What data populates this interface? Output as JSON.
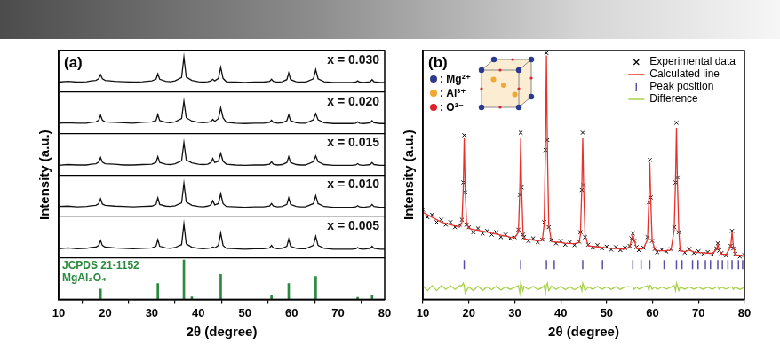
{
  "chart_data": [
    {
      "type": "line",
      "title": "(a)",
      "xlabel": "2θ (degree)",
      "ylabel": "Intensity (a.u.)",
      "xlim": [
        10,
        80
      ],
      "xticks": [
        10,
        20,
        30,
        40,
        50,
        60,
        70,
        80
      ],
      "ylim": [
        0,
        6
      ],
      "yticks": [
        0,
        1,
        2,
        3,
        4,
        5,
        6
      ],
      "grid": "y",
      "tick_labels": "x",
      "x": [
        10,
        12,
        14,
        16,
        17,
        18,
        18.6,
        19.0,
        19.4,
        20,
        22,
        24,
        26,
        28,
        30,
        30.9,
        31.3,
        31.7,
        33,
        34,
        35,
        36.4,
        36.9,
        37.4,
        38.6,
        40,
        41,
        42,
        42.7,
        43.1,
        43.5,
        44.3,
        44.8,
        45.3,
        46,
        48,
        50,
        52,
        54,
        55.3,
        55.7,
        56.1,
        57,
        58,
        59.0,
        59.4,
        59.8,
        61,
        62,
        63,
        64.7,
        65.2,
        65.7,
        67,
        69,
        71,
        73,
        73.8,
        74.2,
        74.6,
        75.5,
        76.9,
        77.3,
        77.7,
        79,
        80
      ],
      "series": [
        {
          "name": "x = 0.030",
          "type": "line",
          "color": "#111111",
          "values": [
            5.24,
            5.26,
            5.24,
            5.25,
            5.27,
            5.28,
            5.32,
            5.42,
            5.32,
            5.28,
            5.26,
            5.25,
            5.24,
            5.25,
            5.27,
            5.31,
            5.44,
            5.31,
            5.26,
            5.25,
            5.27,
            5.35,
            5.84,
            5.36,
            5.28,
            5.25,
            5.24,
            5.25,
            5.27,
            5.31,
            5.27,
            5.33,
            5.6,
            5.33,
            5.25,
            5.24,
            5.23,
            5.24,
            5.24,
            5.26,
            5.31,
            5.26,
            5.24,
            5.25,
            5.3,
            5.46,
            5.3,
            5.25,
            5.24,
            5.24,
            5.32,
            5.54,
            5.32,
            5.25,
            5.23,
            5.23,
            5.23,
            5.24,
            5.27,
            5.24,
            5.23,
            5.25,
            5.3,
            5.25,
            5.23,
            5.23
          ]
        },
        {
          "name": "x = 0.020",
          "type": "line",
          "color": "#111111",
          "values": [
            4.25,
            4.26,
            4.25,
            4.25,
            4.27,
            4.28,
            4.32,
            4.44,
            4.32,
            4.28,
            4.27,
            4.26,
            4.25,
            4.27,
            4.28,
            4.31,
            4.46,
            4.31,
            4.27,
            4.26,
            4.28,
            4.36,
            4.78,
            4.38,
            4.3,
            4.27,
            4.26,
            4.27,
            4.29,
            4.34,
            4.29,
            4.36,
            4.62,
            4.38,
            4.27,
            4.25,
            4.24,
            4.25,
            4.25,
            4.27,
            4.32,
            4.27,
            4.25,
            4.26,
            4.31,
            4.45,
            4.31,
            4.26,
            4.25,
            4.25,
            4.33,
            4.48,
            4.33,
            4.26,
            4.24,
            4.24,
            4.24,
            4.25,
            4.28,
            4.25,
            4.24,
            4.26,
            4.31,
            4.26,
            4.24,
            4.24
          ]
        },
        {
          "name": "x = 0.015",
          "type": "line",
          "color": "#111111",
          "values": [
            3.23,
            3.25,
            3.24,
            3.24,
            3.26,
            3.27,
            3.31,
            3.42,
            3.31,
            3.27,
            3.26,
            3.24,
            3.24,
            3.25,
            3.26,
            3.3,
            3.44,
            3.3,
            3.26,
            3.25,
            3.27,
            3.34,
            3.78,
            3.36,
            3.29,
            3.26,
            3.25,
            3.26,
            3.3,
            3.4,
            3.3,
            3.33,
            3.52,
            3.33,
            3.26,
            3.24,
            3.23,
            3.24,
            3.24,
            3.26,
            3.32,
            3.26,
            3.24,
            3.25,
            3.3,
            3.44,
            3.3,
            3.25,
            3.24,
            3.24,
            3.32,
            3.46,
            3.32,
            3.25,
            3.23,
            3.23,
            3.23,
            3.24,
            3.27,
            3.24,
            3.23,
            3.25,
            3.3,
            3.25,
            3.23,
            3.23
          ]
        },
        {
          "name": "x = 0.010",
          "type": "line",
          "color": "#111111",
          "values": [
            2.24,
            2.25,
            2.23,
            2.24,
            2.26,
            2.27,
            2.31,
            2.43,
            2.3,
            2.27,
            2.25,
            2.24,
            2.23,
            2.24,
            2.25,
            2.29,
            2.45,
            2.29,
            2.25,
            2.24,
            2.26,
            2.33,
            2.8,
            2.35,
            2.27,
            2.24,
            2.23,
            2.25,
            2.28,
            2.38,
            2.28,
            2.31,
            2.55,
            2.31,
            2.24,
            2.23,
            2.22,
            2.23,
            2.23,
            2.25,
            2.31,
            2.25,
            2.23,
            2.24,
            2.29,
            2.45,
            2.29,
            2.24,
            2.23,
            2.23,
            2.31,
            2.5,
            2.31,
            2.24,
            2.22,
            2.22,
            2.22,
            2.23,
            2.26,
            2.23,
            2.22,
            2.24,
            2.29,
            2.24,
            2.22,
            2.22
          ]
        },
        {
          "name": "x = 0.005",
          "type": "line",
          "color": "#111111",
          "values": [
            1.22,
            1.24,
            1.22,
            1.23,
            1.25,
            1.26,
            1.3,
            1.42,
            1.3,
            1.26,
            1.24,
            1.23,
            1.22,
            1.23,
            1.24,
            1.28,
            1.44,
            1.28,
            1.24,
            1.23,
            1.25,
            1.32,
            1.82,
            1.34,
            1.26,
            1.23,
            1.22,
            1.23,
            1.24,
            1.26,
            1.24,
            1.3,
            1.6,
            1.3,
            1.23,
            1.22,
            1.21,
            1.22,
            1.22,
            1.24,
            1.3,
            1.24,
            1.22,
            1.23,
            1.28,
            1.45,
            1.28,
            1.23,
            1.22,
            1.22,
            1.3,
            1.52,
            1.3,
            1.23,
            1.21,
            1.21,
            1.21,
            1.22,
            1.25,
            1.22,
            1.21,
            1.23,
            1.28,
            1.23,
            1.21,
            1.21
          ]
        },
        {
          "name": "JCPDS 21-1152\nMgAl₂O₄",
          "type": "bar",
          "color": "#2a8a3e",
          "x": [
            19.0,
            31.3,
            36.9,
            38.6,
            44.8,
            55.7,
            59.4,
            65.2,
            74.2,
            77.3
          ],
          "values": [
            0.25,
            0.38,
            0.95,
            0.06,
            0.6,
            0.1,
            0.38,
            0.55,
            0.05,
            0.09
          ]
        }
      ]
    },
    {
      "type": "scatter",
      "title": "(b)",
      "xlabel": "2θ (degree)",
      "ylabel": "Intensity (a.u.)",
      "xlim": [
        10,
        80
      ],
      "xticks": [
        10,
        20,
        30,
        40,
        50,
        60,
        70,
        80
      ],
      "ylim": [
        0,
        1
      ],
      "tick_labels": "x",
      "legend": "upper right",
      "annotations": [
        {
          "text": ": Mg²⁺",
          "color": "#2b3a8f"
        },
        {
          "text": ": Al³⁺",
          "color": "#f0a830"
        },
        {
          "text": ": O²⁻",
          "color": "#e0202a"
        }
      ],
      "x": [
        10,
        11,
        12,
        13,
        14,
        15,
        16,
        17,
        18,
        18.5,
        18.8,
        19.0,
        19.2,
        19.5,
        20,
        21,
        22,
        23,
        24,
        25,
        26,
        27,
        28,
        29,
        30,
        30.8,
        31.1,
        31.3,
        31.5,
        31.8,
        32,
        33,
        34,
        35,
        36,
        36.4,
        36.7,
        36.9,
        37.1,
        37.4,
        38,
        39,
        40,
        41,
        42,
        43,
        44,
        44.3,
        44.6,
        44.8,
        45.0,
        45.3,
        46,
        47,
        48,
        49,
        50,
        51,
        52,
        53,
        54,
        55,
        55.4,
        55.7,
        56.0,
        56.5,
        57,
        58,
        58.9,
        59.2,
        59.4,
        59.6,
        59.9,
        60.5,
        61,
        62,
        63,
        64,
        64.7,
        65.0,
        65.2,
        65.4,
        65.7,
        66,
        67,
        68,
        69,
        70,
        71,
        72,
        73,
        73.9,
        74.2,
        74.5,
        75,
        76,
        77.0,
        77.3,
        77.6,
        78,
        79,
        80
      ],
      "series": [
        {
          "name": "Experimental data",
          "type": "scatter",
          "marker": "x",
          "color": "#000000",
          "values": [
            0.36,
            0.33,
            0.34,
            0.31,
            0.32,
            0.3,
            0.31,
            0.29,
            0.3,
            0.32,
            0.47,
            0.66,
            0.43,
            0.3,
            0.29,
            0.27,
            0.285,
            0.265,
            0.275,
            0.26,
            0.27,
            0.25,
            0.26,
            0.245,
            0.25,
            0.28,
            0.42,
            0.67,
            0.45,
            0.26,
            0.25,
            0.235,
            0.245,
            0.23,
            0.24,
            0.31,
            0.6,
            0.99,
            0.64,
            0.29,
            0.24,
            0.225,
            0.235,
            0.22,
            0.23,
            0.218,
            0.232,
            0.27,
            0.44,
            0.67,
            0.46,
            0.25,
            0.22,
            0.208,
            0.218,
            0.205,
            0.212,
            0.2,
            0.21,
            0.198,
            0.207,
            0.215,
            0.245,
            0.265,
            0.235,
            0.21,
            0.198,
            0.208,
            0.25,
            0.39,
            0.56,
            0.41,
            0.235,
            0.203,
            0.19,
            0.2,
            0.192,
            0.202,
            0.29,
            0.47,
            0.71,
            0.49,
            0.27,
            0.2,
            0.188,
            0.203,
            0.186,
            0.193,
            0.182,
            0.19,
            0.18,
            0.205,
            0.225,
            0.196,
            0.186,
            0.176,
            0.215,
            0.275,
            0.205,
            0.183,
            0.172,
            0.178
          ]
        },
        {
          "name": "Calculated line",
          "type": "line",
          "color": "#e8312a",
          "values": [
            0.35,
            0.34,
            0.33,
            0.32,
            0.31,
            0.305,
            0.3,
            0.295,
            0.29,
            0.31,
            0.45,
            0.65,
            0.45,
            0.31,
            0.285,
            0.28,
            0.277,
            0.274,
            0.27,
            0.266,
            0.262,
            0.258,
            0.255,
            0.25,
            0.247,
            0.27,
            0.44,
            0.65,
            0.44,
            0.27,
            0.243,
            0.24,
            0.238,
            0.236,
            0.238,
            0.3,
            0.62,
            0.98,
            0.62,
            0.3,
            0.232,
            0.23,
            0.228,
            0.226,
            0.225,
            0.224,
            0.228,
            0.26,
            0.45,
            0.65,
            0.45,
            0.26,
            0.215,
            0.213,
            0.211,
            0.209,
            0.207,
            0.205,
            0.204,
            0.203,
            0.202,
            0.21,
            0.24,
            0.26,
            0.24,
            0.205,
            0.202,
            0.204,
            0.24,
            0.4,
            0.55,
            0.4,
            0.24,
            0.198,
            0.196,
            0.195,
            0.196,
            0.198,
            0.28,
            0.48,
            0.69,
            0.48,
            0.28,
            0.195,
            0.192,
            0.198,
            0.19,
            0.188,
            0.187,
            0.186,
            0.185,
            0.2,
            0.22,
            0.2,
            0.182,
            0.18,
            0.21,
            0.27,
            0.21,
            0.179,
            0.177,
            0.175
          ]
        },
        {
          "name": "Peak position",
          "type": "scatter",
          "marker": "|",
          "color": "#5a4fa6",
          "x": [
            19.0,
            31.3,
            36.9,
            38.6,
            44.8,
            49.1,
            55.7,
            57.5,
            59.4,
            62.5,
            65.2,
            66.4,
            68.7,
            69.9,
            71.5,
            72.6,
            74.2,
            75.2,
            76.4,
            77.3,
            78.7,
            79.6
          ],
          "values": [
            0.14,
            0.14,
            0.14,
            0.14,
            0.14,
            0.14,
            0.14,
            0.14,
            0.14,
            0.14,
            0.14,
            0.14,
            0.14,
            0.14,
            0.14,
            0.14,
            0.14,
            0.14,
            0.14,
            0.14,
            0.14,
            0.14
          ]
        },
        {
          "name": "Difference",
          "type": "line",
          "color": "#a9d14b",
          "values": [
            0.055,
            0.035,
            0.055,
            0.035,
            0.055,
            0.04,
            0.055,
            0.04,
            0.055,
            0.055,
            0.065,
            0.055,
            0.025,
            0.035,
            0.05,
            0.035,
            0.053,
            0.036,
            0.05,
            0.039,
            0.053,
            0.037,
            0.05,
            0.04,
            0.048,
            0.055,
            0.025,
            0.065,
            0.055,
            0.035,
            0.052,
            0.04,
            0.052,
            0.039,
            0.047,
            0.055,
            0.025,
            0.055,
            0.065,
            0.035,
            0.053,
            0.04,
            0.052,
            0.039,
            0.05,
            0.039,
            0.049,
            0.055,
            0.035,
            0.065,
            0.055,
            0.035,
            0.05,
            0.04,
            0.052,
            0.041,
            0.05,
            0.04,
            0.051,
            0.04,
            0.05,
            0.05,
            0.05,
            0.05,
            0.04,
            0.05,
            0.041,
            0.049,
            0.055,
            0.035,
            0.055,
            0.055,
            0.04,
            0.05,
            0.039,
            0.05,
            0.041,
            0.049,
            0.055,
            0.035,
            0.065,
            0.055,
            0.035,
            0.05,
            0.041,
            0.05,
            0.041,
            0.05,
            0.04,
            0.049,
            0.04,
            0.05,
            0.05,
            0.041,
            0.049,
            0.041,
            0.05,
            0.05,
            0.04,
            0.049,
            0.04,
            0.048
          ]
        }
      ]
    }
  ]
}
